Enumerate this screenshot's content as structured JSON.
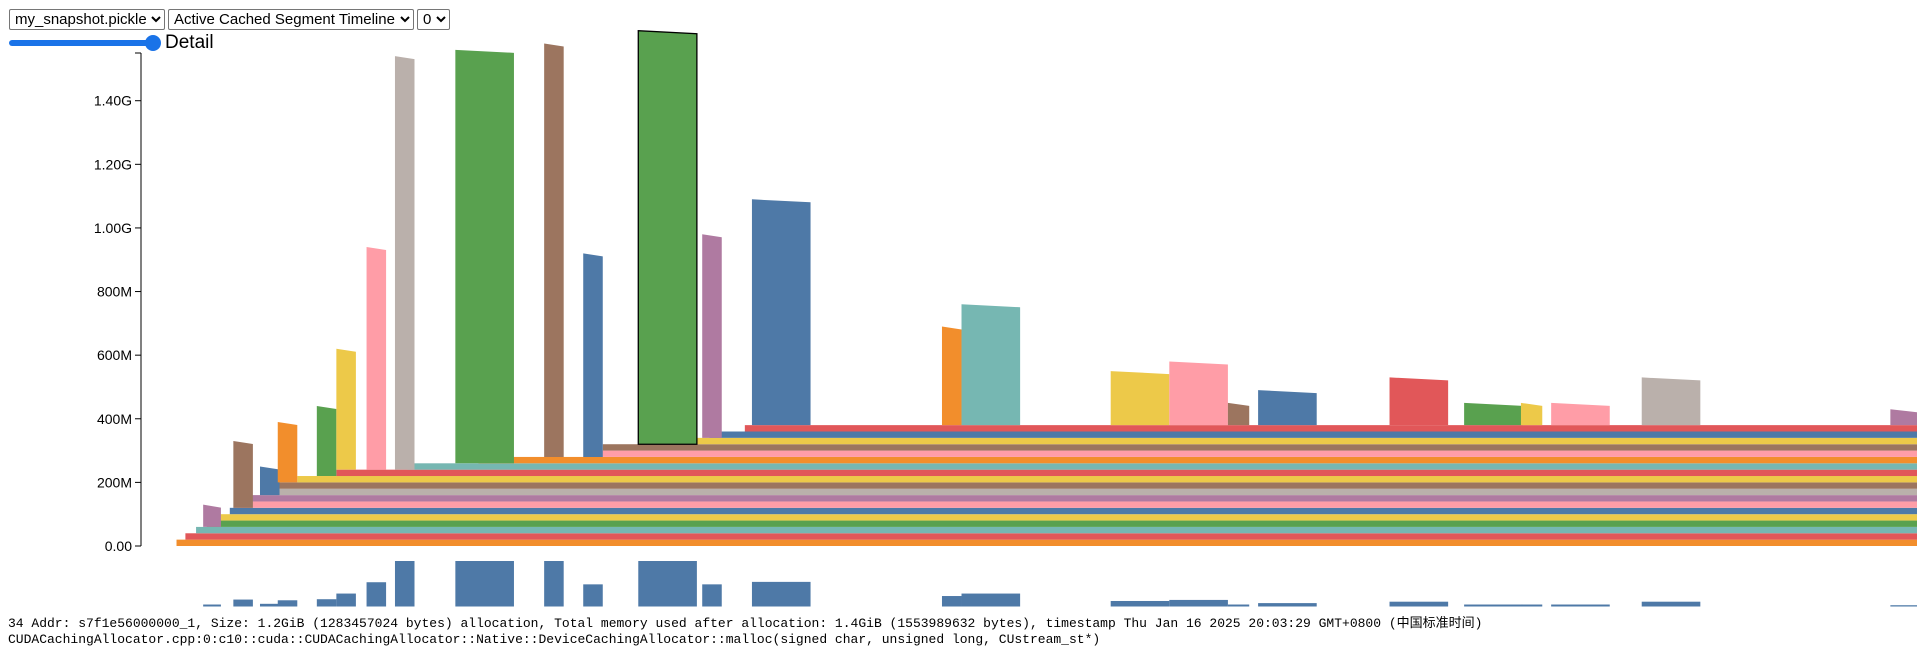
{
  "controls": {
    "snapshot_select": {
      "value": "my_snapshot.pickle"
    },
    "view_select": {
      "value": "Active Cached Segment Timeline"
    },
    "device_select": {
      "value": "0"
    },
    "detail_slider": {
      "value_fraction": 1.0,
      "label": "Detail"
    }
  },
  "status": {
    "line1": "34 Addr: s7f1e56000000_1, Size: 1.2GiB (1283457024 bytes) allocation, Total memory used after allocation: 1.4GiB (1553989632 bytes), timestamp Thu Jan 16 2025 20:03:29 GMT+0800 (中国标准时间)",
    "line2": "CUDACachingAllocator.cpp:0:c10::cuda::CUDACachingAllocator::Native::DeviceCachingAllocator::malloc(signed char, unsigned long, CUstream_st*)"
  },
  "colors": {
    "accent": "#1a73e8",
    "palette": [
      "#4e79a7",
      "#f28e2c",
      "#e15759",
      "#76b7b2",
      "#59a14f",
      "#edc949",
      "#af7aa1",
      "#ff9da7",
      "#9c755f",
      "#bab0ab"
    ],
    "selected_outline": "#000000",
    "minibar": "#4e79a7"
  },
  "chart_data": {
    "type": "area",
    "title": "",
    "xlabel": "",
    "ylabel": "",
    "ylim": [
      0,
      1.55
    ],
    "y_unit": "GB (decimal)",
    "y_ticks": [
      {
        "value": 0.0,
        "label": "0.00"
      },
      {
        "value": 0.2,
        "label": "200M"
      },
      {
        "value": 0.4,
        "label": "400M"
      },
      {
        "value": 0.6,
        "label": "600M"
      },
      {
        "value": 0.8,
        "label": "800M"
      },
      {
        "value": 1.0,
        "label": "1.00G"
      },
      {
        "value": 1.2,
        "label": "1.20G"
      },
      {
        "value": 1.4,
        "label": "1.40G"
      }
    ],
    "x_range": [
      0,
      1000
    ],
    "persistent_bands": [
      {
        "thickness": 0.02,
        "x_start": 20,
        "x_end": 1000,
        "color": 1
      },
      {
        "thickness": 0.02,
        "x_start": 25,
        "x_end": 1000,
        "color": 2
      },
      {
        "thickness": 0.02,
        "x_start": 31,
        "x_end": 1000,
        "color": 3
      },
      {
        "thickness": 0.02,
        "x_start": 37,
        "x_end": 1000,
        "color": 4
      },
      {
        "thickness": 0.02,
        "x_start": 43,
        "x_end": 1000,
        "color": 5
      },
      {
        "thickness": 0.02,
        "x_start": 50,
        "x_end": 1000,
        "color": 0
      },
      {
        "thickness": 0.02,
        "x_start": 56,
        "x_end": 1000,
        "color": 7
      },
      {
        "thickness": 0.02,
        "x_start": 62,
        "x_end": 1000,
        "color": 6
      },
      {
        "thickness": 0.02,
        "x_start": 68,
        "x_end": 1000,
        "color": 9
      },
      {
        "thickness": 0.02,
        "x_start": 75,
        "x_end": 1000,
        "color": 8
      },
      {
        "thickness": 0.02,
        "x_start": 88,
        "x_end": 1000,
        "color": 5
      },
      {
        "thickness": 0.02,
        "x_start": 110,
        "x_end": 1000,
        "color": 2
      },
      {
        "thickness": 0.02,
        "x_start": 150,
        "x_end": 1000,
        "color": 3
      },
      {
        "thickness": 0.02,
        "x_start": 190,
        "x_end": 1000,
        "color": 1
      },
      {
        "thickness": 0.02,
        "x_start": 250,
        "x_end": 1000,
        "color": 7
      },
      {
        "thickness": 0.02,
        "x_start": 260,
        "x_end": 1000,
        "color": 8
      },
      {
        "thickness": 0.02,
        "x_start": 300,
        "x_end": 1000,
        "color": 5
      },
      {
        "thickness": 0.02,
        "x_start": 320,
        "x_end": 1000,
        "color": 0
      },
      {
        "thickness": 0.02,
        "x_start": 340,
        "x_end": 1000,
        "color": 2
      }
    ],
    "spikes": [
      {
        "x0": 35,
        "x1": 45,
        "height": 0.07,
        "color": 6
      },
      {
        "x0": 52,
        "x1": 63,
        "height": 0.21,
        "color": 8
      },
      {
        "x0": 67,
        "x1": 78,
        "height": 0.09,
        "color": 0
      },
      {
        "x0": 77,
        "x1": 88,
        "height": 0.19,
        "color": 1
      },
      {
        "x0": 99,
        "x1": 110,
        "height": 0.22,
        "color": 4
      },
      {
        "x0": 110,
        "x1": 121,
        "height": 0.38,
        "color": 5
      },
      {
        "x0": 127,
        "x1": 138,
        "height": 0.7,
        "color": 7
      },
      {
        "x0": 143,
        "x1": 154,
        "height": 1.3,
        "color": 9
      },
      {
        "x0": 177,
        "x1": 210,
        "height": 1.3,
        "color": 4
      },
      {
        "x0": 227,
        "x1": 238,
        "height": 1.3,
        "color": 8
      },
      {
        "x0": 249,
        "x1": 260,
        "height": 0.64,
        "color": 0
      },
      {
        "x0": 280,
        "x1": 313,
        "height": 1.3,
        "color": 4,
        "selected": true
      },
      {
        "x0": 316,
        "x1": 327,
        "height": 0.64,
        "color": 6
      },
      {
        "x0": 344,
        "x1": 377,
        "height": 0.71,
        "color": 0
      },
      {
        "x0": 451,
        "x1": 462,
        "height": 0.31,
        "color": 1
      },
      {
        "x0": 462,
        "x1": 495,
        "height": 0.38,
        "color": 3
      },
      {
        "x0": 546,
        "x1": 579,
        "height": 0.17,
        "color": 5
      },
      {
        "x0": 579,
        "x1": 612,
        "height": 0.2,
        "color": 7
      },
      {
        "x0": 612,
        "x1": 624,
        "height": 0.07,
        "color": 8
      },
      {
        "x0": 629,
        "x1": 662,
        "height": 0.11,
        "color": 0
      },
      {
        "x0": 703,
        "x1": 736,
        "height": 0.15,
        "color": 2
      },
      {
        "x0": 745,
        "x1": 778,
        "height": 0.07,
        "color": 4
      },
      {
        "x0": 777,
        "x1": 789,
        "height": 0.07,
        "color": 5
      },
      {
        "x0": 794,
        "x1": 827,
        "height": 0.07,
        "color": 7
      },
      {
        "x0": 845,
        "x1": 878,
        "height": 0.15,
        "color": 9
      },
      {
        "x0": 985,
        "x1": 1000,
        "height": 0.05,
        "color": 6
      }
    ]
  }
}
